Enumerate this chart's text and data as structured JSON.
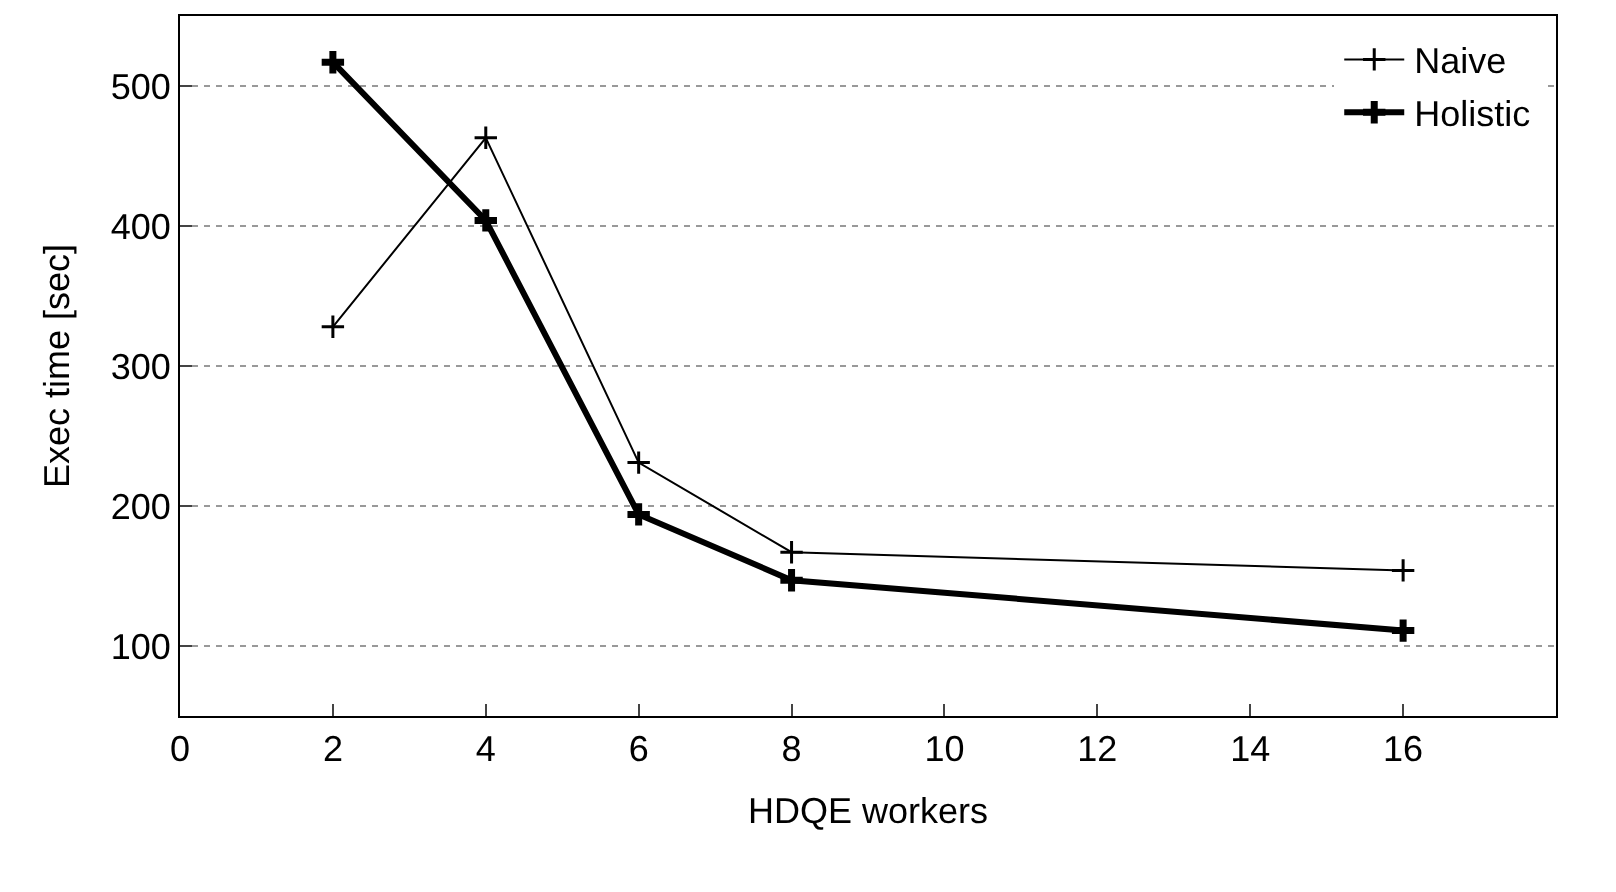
{
  "chart_data": {
    "type": "line",
    "xlabel": "HDQE workers",
    "ylabel": "Exec time [sec]",
    "xlim": [
      0,
      18
    ],
    "xticks": [
      0,
      2,
      4,
      6,
      8,
      10,
      12,
      14,
      16
    ],
    "ylim": [
      50,
      550
    ],
    "yticks": [
      100,
      200,
      300,
      400,
      500
    ],
    "grid": "y",
    "legend": "top right",
    "marker": "cross",
    "series": [
      {
        "name": "Naive",
        "color": "#000000",
        "x": [
          2,
          4,
          6,
          8,
          16
        ],
        "values": [
          328,
          463,
          231,
          167,
          154
        ]
      },
      {
        "name": "Holistic",
        "color": "#000000",
        "x": [
          2,
          4,
          6,
          8,
          16
        ],
        "values": [
          517,
          404,
          194,
          147,
          111
        ]
      }
    ]
  }
}
